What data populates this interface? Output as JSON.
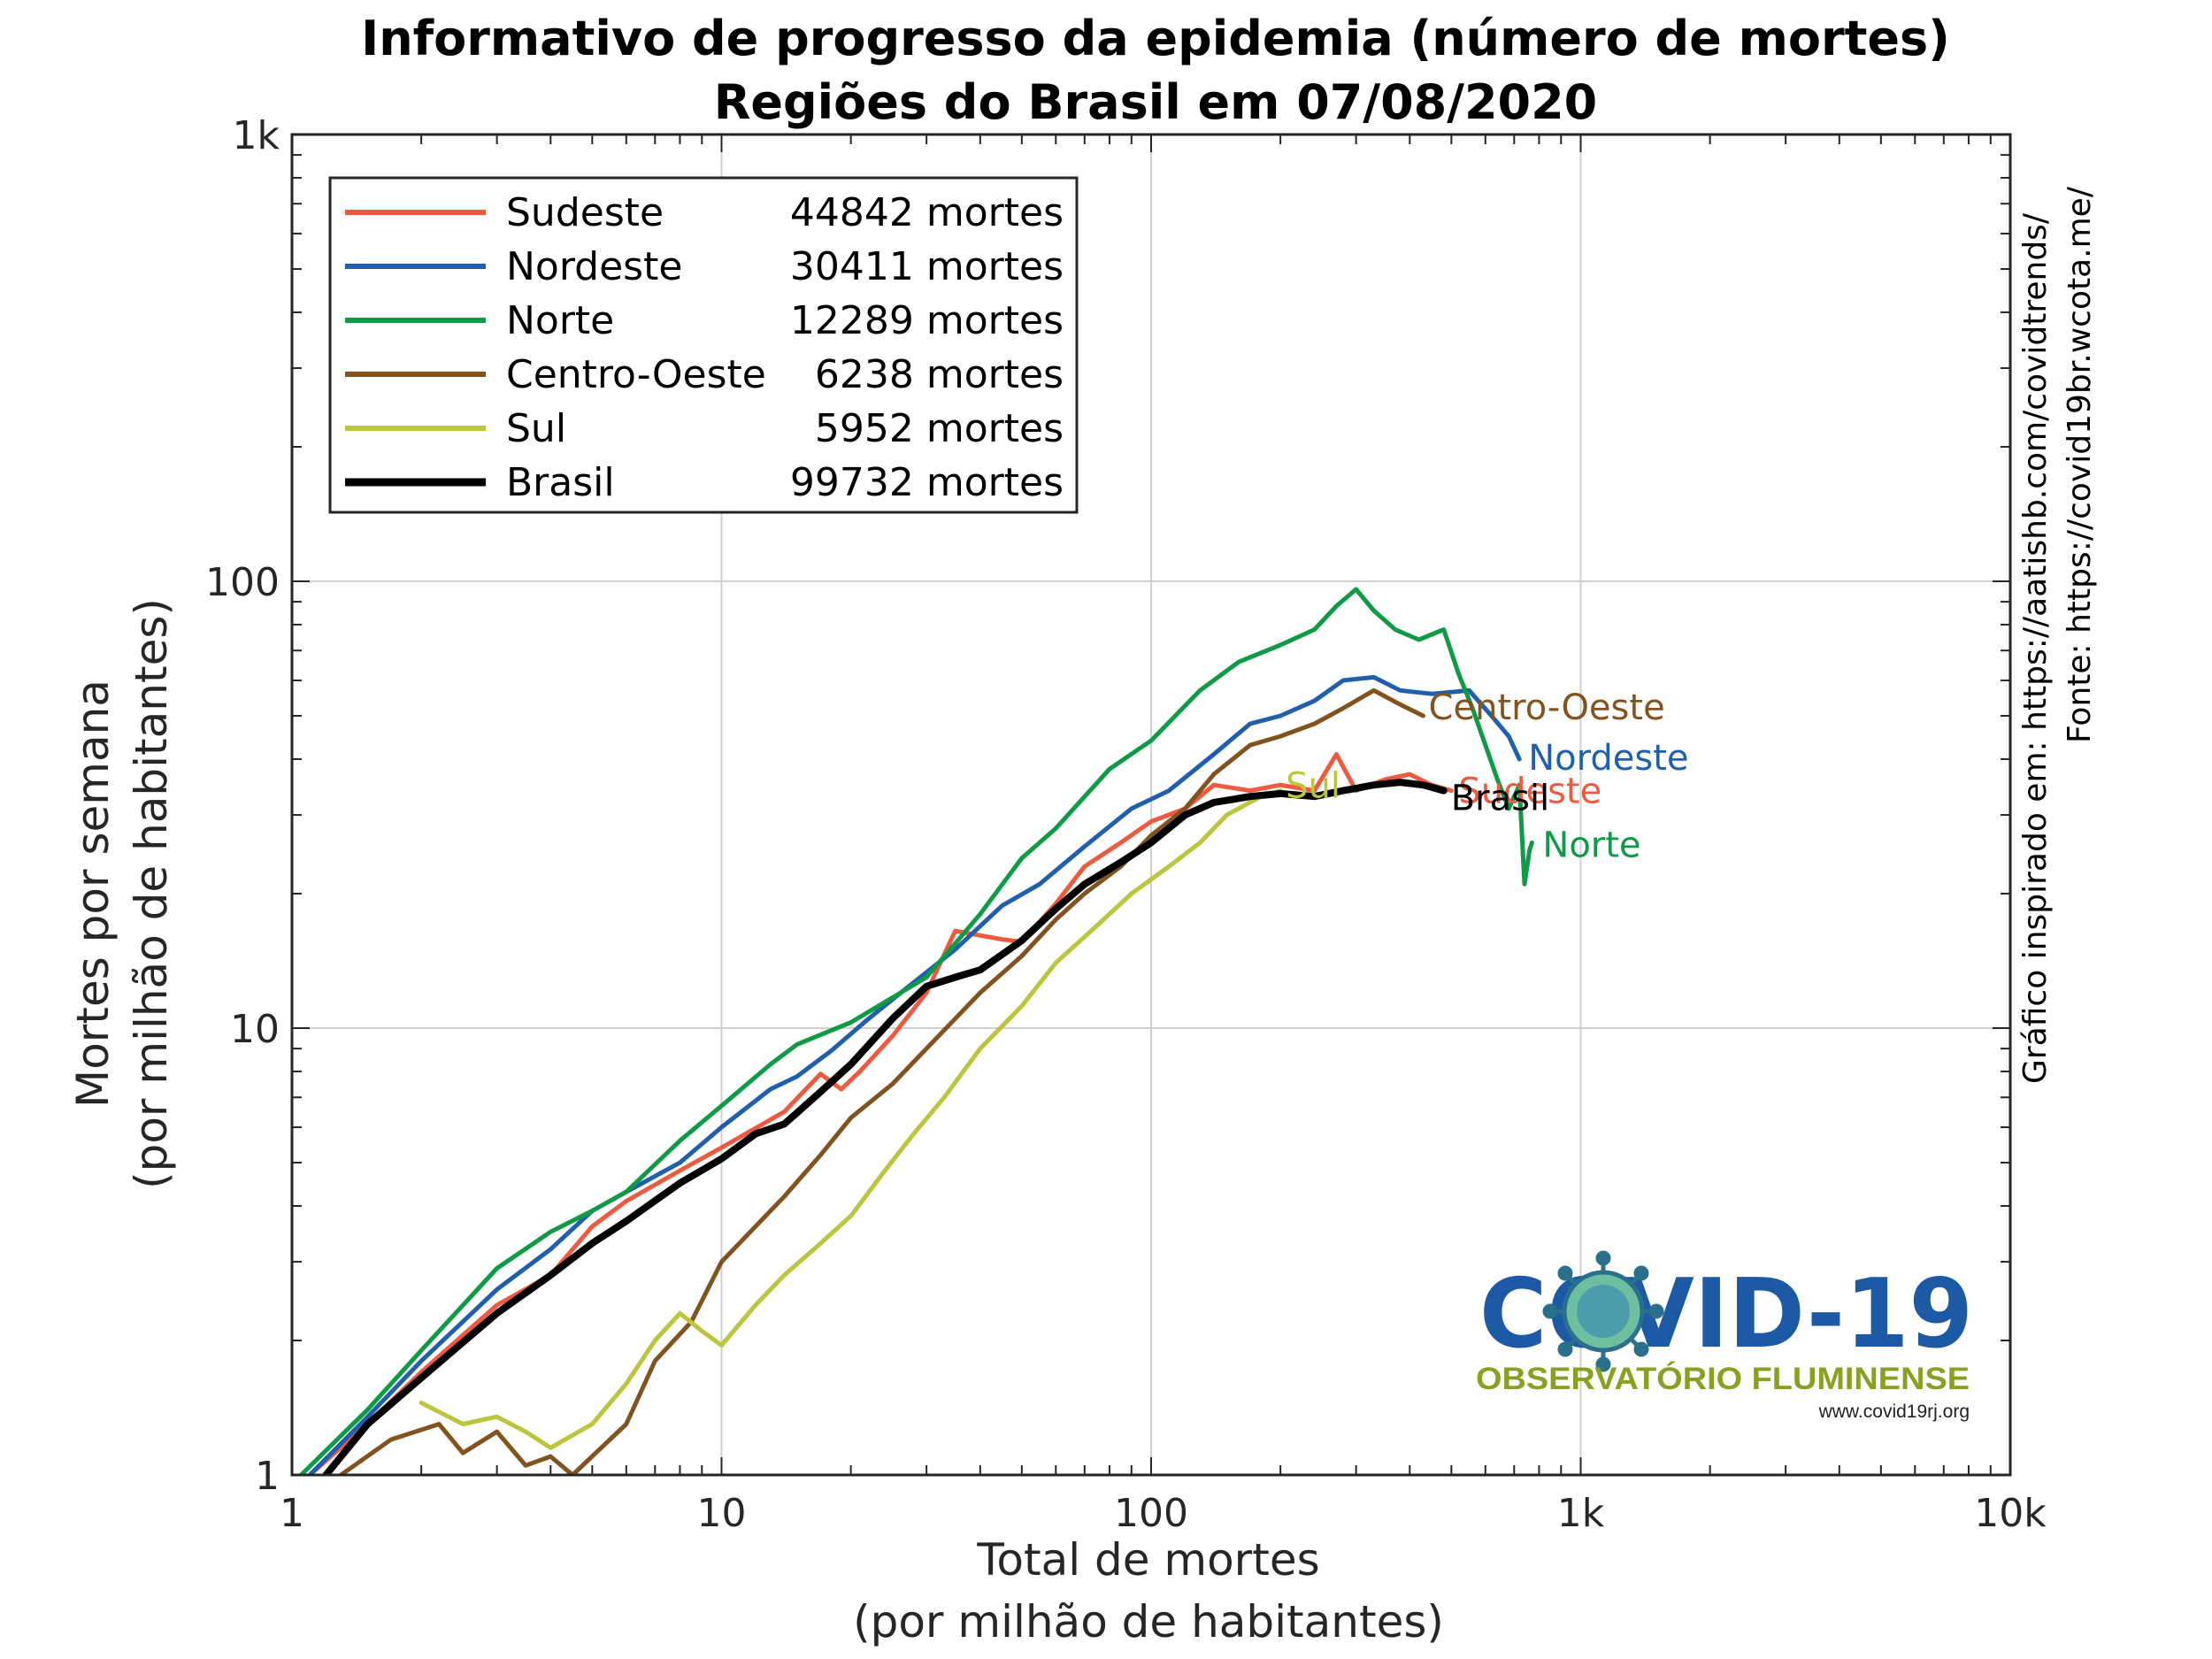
{
  "chart_data": {
    "type": "line",
    "title": "Informativo de progresso da epidemia (número de mortes)",
    "subtitle": "Regiões do Brasil em 07/08/2020",
    "xlabel": [
      "Total de mortes",
      "(por milhão de habitantes)"
    ],
    "ylabel": [
      "Mortes por semana",
      "(por milhão de habitantes)"
    ],
    "x_scale": "log",
    "y_scale": "log",
    "xlim": [
      1,
      10000
    ],
    "ylim": [
      1,
      1000
    ],
    "x_ticks": [
      {
        "value": 1,
        "label": "1"
      },
      {
        "value": 10,
        "label": "10"
      },
      {
        "value": 100,
        "label": "100"
      },
      {
        "value": 1000,
        "label": "1k"
      },
      {
        "value": 10000,
        "label": "10k"
      }
    ],
    "y_ticks": [
      {
        "value": 1,
        "label": "1"
      },
      {
        "value": 10,
        "label": "10"
      },
      {
        "value": 100,
        "label": "100"
      },
      {
        "value": 1000,
        "label": "1k"
      }
    ],
    "grid": true,
    "legend_position": "top-left",
    "series": [
      {
        "name": "Sudeste",
        "deaths": "44842 mortes",
        "color": "#ee5a3f",
        "end_label": "Sudeste",
        "points": [
          [
            1.1,
            1
          ],
          [
            1.5,
            1.3
          ],
          [
            2,
            1.7
          ],
          [
            3,
            2.4
          ],
          [
            4,
            2.8
          ],
          [
            5,
            3.6
          ],
          [
            6,
            4.1
          ],
          [
            8,
            4.8
          ],
          [
            10,
            5.4
          ],
          [
            14,
            6.5
          ],
          [
            17,
            7.9
          ],
          [
            19,
            7.3
          ],
          [
            21,
            8.0
          ],
          [
            25,
            9.6
          ],
          [
            30,
            12
          ],
          [
            35,
            16.5
          ],
          [
            45,
            15.8
          ],
          [
            50,
            15.6
          ],
          [
            60,
            19
          ],
          [
            70,
            23
          ],
          [
            85,
            26
          ],
          [
            100,
            29
          ],
          [
            120,
            31
          ],
          [
            140,
            35
          ],
          [
            170,
            34
          ],
          [
            200,
            35
          ],
          [
            240,
            34
          ],
          [
            270,
            41
          ],
          [
            300,
            34
          ],
          [
            350,
            36
          ],
          [
            400,
            37
          ],
          [
            450,
            35
          ],
          [
            500,
            34
          ]
        ]
      },
      {
        "name": "Nordeste",
        "deaths": "30411 mortes",
        "color": "#1f5fae",
        "end_label": "Nordeste",
        "points": [
          [
            1.1,
            1
          ],
          [
            1.5,
            1.35
          ],
          [
            2,
            1.8
          ],
          [
            3,
            2.6
          ],
          [
            4,
            3.2
          ],
          [
            5,
            3.9
          ],
          [
            6,
            4.3
          ],
          [
            8,
            5
          ],
          [
            10,
            6
          ],
          [
            13,
            7.3
          ],
          [
            15,
            7.8
          ],
          [
            18,
            8.9
          ],
          [
            22,
            10.5
          ],
          [
            27,
            12.3
          ],
          [
            35,
            15
          ],
          [
            45,
            18.8
          ],
          [
            55,
            21
          ],
          [
            70,
            25.5
          ],
          [
            90,
            31
          ],
          [
            110,
            34
          ],
          [
            140,
            41
          ],
          [
            170,
            48
          ],
          [
            200,
            50
          ],
          [
            240,
            54
          ],
          [
            280,
            60
          ],
          [
            330,
            61
          ],
          [
            380,
            57
          ],
          [
            450,
            56
          ],
          [
            550,
            57
          ],
          [
            620,
            50
          ],
          [
            680,
            45
          ],
          [
            720,
            40
          ]
        ]
      },
      {
        "name": "Norte",
        "deaths": "12289 mortes",
        "color": "#0f9b45",
        "end_label": "Norte",
        "points": [
          [
            1.05,
            1
          ],
          [
            1.5,
            1.4
          ],
          [
            2,
            1.9
          ],
          [
            3,
            2.9
          ],
          [
            4,
            3.5
          ],
          [
            5,
            3.9
          ],
          [
            6,
            4.3
          ],
          [
            8,
            5.6
          ],
          [
            10,
            6.7
          ],
          [
            13,
            8.3
          ],
          [
            15,
            9.2
          ],
          [
            20,
            10.3
          ],
          [
            30,
            13
          ],
          [
            40,
            18
          ],
          [
            50,
            24
          ],
          [
            60,
            28
          ],
          [
            80,
            38
          ],
          [
            100,
            44
          ],
          [
            130,
            57
          ],
          [
            160,
            66
          ],
          [
            200,
            72
          ],
          [
            240,
            78
          ],
          [
            270,
            88
          ],
          [
            300,
            96
          ],
          [
            330,
            86
          ],
          [
            370,
            78
          ],
          [
            420,
            74
          ],
          [
            480,
            78
          ],
          [
            520,
            62
          ],
          [
            560,
            52
          ],
          [
            600,
            43
          ],
          [
            640,
            36
          ],
          [
            680,
            31
          ],
          [
            720,
            35
          ],
          [
            740,
            21
          ],
          [
            760,
            25
          ],
          [
            770,
            26
          ]
        ]
      },
      {
        "name": "Centro-Oeste",
        "deaths": "6238 mortes",
        "color": "#82531e",
        "end_label": "Centro-Oeste",
        "points": [
          [
            1.3,
            1
          ],
          [
            1.7,
            1.2
          ],
          [
            2.2,
            1.3
          ],
          [
            2.5,
            1.12
          ],
          [
            3,
            1.25
          ],
          [
            3.5,
            1.05
          ],
          [
            4,
            1.1
          ],
          [
            4.5,
            1.0
          ],
          [
            6,
            1.3
          ],
          [
            7,
            1.8
          ],
          [
            8.5,
            2.2
          ],
          [
            10,
            3
          ],
          [
            12,
            3.6
          ],
          [
            14,
            4.2
          ],
          [
            17,
            5.2
          ],
          [
            20,
            6.3
          ],
          [
            25,
            7.5
          ],
          [
            30,
            9
          ],
          [
            35,
            10.5
          ],
          [
            40,
            12
          ],
          [
            50,
            14.5
          ],
          [
            60,
            17.5
          ],
          [
            70,
            20
          ],
          [
            85,
            23
          ],
          [
            100,
            27
          ],
          [
            120,
            31
          ],
          [
            140,
            37
          ],
          [
            170,
            43
          ],
          [
            200,
            45
          ],
          [
            240,
            48
          ],
          [
            280,
            52
          ],
          [
            330,
            57
          ],
          [
            380,
            53
          ],
          [
            430,
            50
          ]
        ]
      },
      {
        "name": "Sul",
        "deaths": "5952 mortes",
        "color": "#bcc63d",
        "end_label": "Sul",
        "points": [
          [
            2,
            1.45
          ],
          [
            2.5,
            1.3
          ],
          [
            3,
            1.35
          ],
          [
            3.5,
            1.25
          ],
          [
            4,
            1.15
          ],
          [
            5,
            1.3
          ],
          [
            6,
            1.6
          ],
          [
            7,
            2.0
          ],
          [
            8,
            2.3
          ],
          [
            9,
            2.1
          ],
          [
            10,
            1.95
          ],
          [
            12,
            2.4
          ],
          [
            14,
            2.8
          ],
          [
            17,
            3.3
          ],
          [
            20,
            3.8
          ],
          [
            24,
            4.8
          ],
          [
            28,
            5.8
          ],
          [
            33,
            7
          ],
          [
            40,
            9
          ],
          [
            50,
            11.2
          ],
          [
            60,
            14
          ],
          [
            75,
            17
          ],
          [
            90,
            20
          ],
          [
            110,
            23
          ],
          [
            130,
            26
          ],
          [
            150,
            30
          ],
          [
            180,
            33
          ],
          [
            200,
            34
          ]
        ]
      },
      {
        "name": "Brasil",
        "deaths": "99732 mortes",
        "color": "#000000",
        "end_label": "Brasil",
        "points": [
          [
            1.2,
            1
          ],
          [
            1.5,
            1.3
          ],
          [
            2,
            1.65
          ],
          [
            3,
            2.3
          ],
          [
            4,
            2.8
          ],
          [
            5,
            3.3
          ],
          [
            6,
            3.7
          ],
          [
            8,
            4.5
          ],
          [
            10,
            5.1
          ],
          [
            12,
            5.8
          ],
          [
            14,
            6.1
          ],
          [
            17,
            7.2
          ],
          [
            20,
            8.3
          ],
          [
            25,
            10.5
          ],
          [
            30,
            12.4
          ],
          [
            35,
            13
          ],
          [
            40,
            13.5
          ],
          [
            50,
            15.7
          ],
          [
            60,
            18.5
          ],
          [
            70,
            21
          ],
          [
            85,
            23.5
          ],
          [
            100,
            26
          ],
          [
            120,
            30
          ],
          [
            140,
            32
          ],
          [
            170,
            33
          ],
          [
            200,
            33.5
          ],
          [
            240,
            33
          ],
          [
            280,
            34
          ],
          [
            330,
            35
          ],
          [
            380,
            35.5
          ],
          [
            430,
            35
          ],
          [
            480,
            34
          ]
        ]
      }
    ],
    "source_text": [
      "Gráfico inspirado em: https://aatishb.com/covidtrends/",
      "Fonte: https://covid19br.wcota.me/"
    ],
    "logo": {
      "title": "COVID-19",
      "subtitle": "OBSERVATÓRIO FLUMINENSE",
      "url": "www.covid19rj.org"
    }
  }
}
